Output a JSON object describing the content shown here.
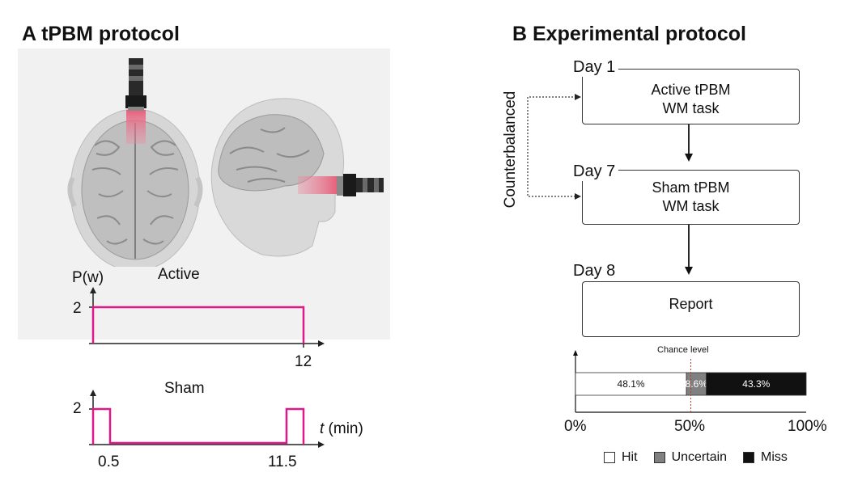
{
  "panel_a": {
    "title": "A tPBM protocol",
    "active_chart": {
      "title": "Active",
      "ylabel": "P(w)",
      "y_tick": "2",
      "x_tick": "12"
    },
    "sham_chart": {
      "title": "Sham",
      "y_tick": "2",
      "x_tick_start": "0.5",
      "x_tick_end": "11.5",
      "xlabel_var": "t",
      "xlabel_unit": " (min)"
    },
    "colors": {
      "pulse": "#e0198a",
      "background": "#f1f1f1"
    }
  },
  "panel_b": {
    "title": "B Experimental protocol",
    "side_label": "Counterbalanced",
    "steps": [
      {
        "day": "Day 1",
        "line1": "Active tPBM",
        "line2": "WM task"
      },
      {
        "day": "Day 7",
        "line1": "Sham tPBM",
        "line2": "WM task"
      },
      {
        "day": "Day 8",
        "line1": "Report",
        "line2": ""
      }
    ],
    "chance_label": "Chance level",
    "bar": {
      "segments": [
        {
          "name": "Hit",
          "value": 48.1,
          "label": "48.1%",
          "color": "#ffffff"
        },
        {
          "name": "Uncertain",
          "value": 8.6,
          "label": "8.6%",
          "color": "#808080"
        },
        {
          "name": "Miss",
          "value": 43.3,
          "label": "43.3%",
          "color": "#111111"
        }
      ],
      "chance_value": 50,
      "ticks": [
        "0%",
        "50%",
        "100%"
      ]
    },
    "legend": [
      "Hit",
      "Uncertain",
      "Miss"
    ]
  }
}
